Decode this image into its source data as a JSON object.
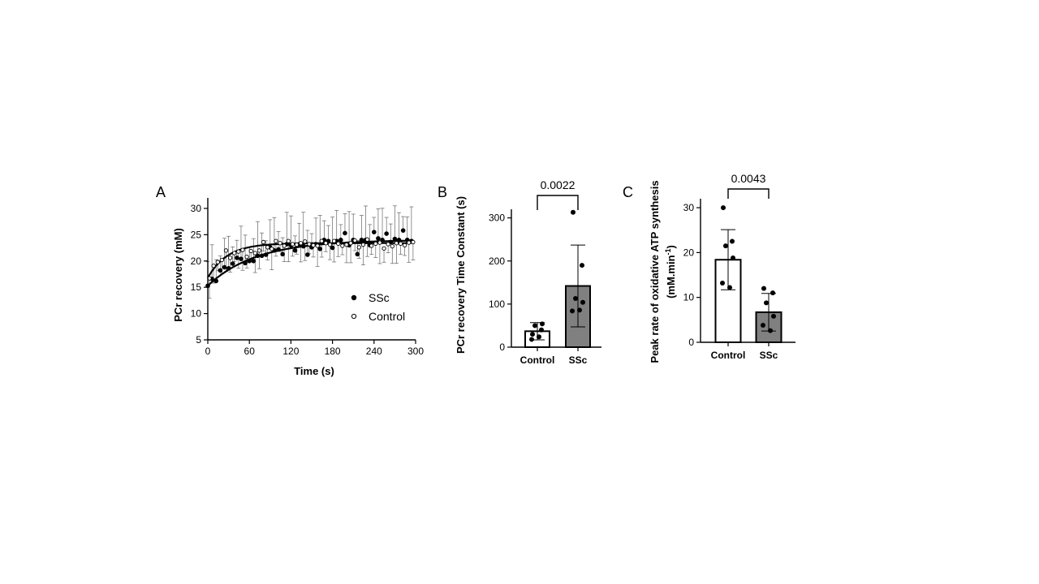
{
  "chart_data": [
    {
      "panel": "A",
      "type": "scatter",
      "xlabel": "Time (s)",
      "ylabel": "PCr recovery (mM)",
      "xlim": [
        0,
        300
      ],
      "ylim": [
        5,
        32
      ],
      "xticks": [
        0,
        60,
        120,
        180,
        240,
        300
      ],
      "yticks": [
        5,
        10,
        15,
        20,
        25,
        30
      ],
      "grid": false,
      "legend_position": "right",
      "series": [
        {
          "name": "SSc",
          "marker": "filled-circle",
          "color": "#000000",
          "x": [
            0,
            6,
            12,
            18,
            24,
            30,
            36,
            42,
            48,
            54,
            60,
            66,
            72,
            78,
            84,
            90,
            96,
            102,
            108,
            114,
            120,
            126,
            132,
            138,
            144,
            150,
            156,
            162,
            168,
            174,
            180,
            186,
            192,
            198,
            204,
            210,
            216,
            222,
            228,
            234,
            240,
            246,
            252,
            258,
            264,
            270,
            276,
            282,
            288,
            294
          ],
          "y": [
            15.3,
            16.6,
            16.2,
            18.2,
            18.8,
            18.6,
            19.5,
            20.6,
            20.4,
            19.6,
            20.0,
            20.0,
            21.0,
            21.0,
            21.2,
            22.6,
            22.0,
            22.2,
            21.3,
            23.2,
            23.0,
            22.0,
            23.2,
            22.8,
            21.2,
            22.6,
            23.2,
            22.3,
            24.0,
            23.8,
            22.5,
            23.8,
            24.0,
            25.3,
            23.0,
            24.0,
            21.3,
            24.0,
            24.0,
            23.0,
            25.5,
            24.3,
            24.0,
            25.2,
            23.6,
            24.2,
            24.0,
            25.8,
            24.0,
            23.8
          ],
          "error_bars": "SD",
          "fit": "mono-exponential"
        },
        {
          "name": "Control",
          "marker": "open-circle",
          "color": "#000000",
          "x": [
            0,
            6,
            12,
            18,
            24,
            30,
            36,
            42,
            48,
            54,
            60,
            66,
            72,
            78,
            84,
            90,
            96,
            102,
            108,
            114,
            120,
            126,
            132,
            138,
            144,
            150,
            156,
            162,
            168,
            174,
            180,
            186,
            192,
            198,
            204,
            210,
            216,
            222,
            228,
            234,
            240,
            246,
            252,
            258,
            264,
            270,
            276,
            282,
            288,
            294
          ],
          "y": [
            16.7,
            19.1,
            19.8,
            20.2,
            22.0,
            20.6,
            21.5,
            21.8,
            22.1,
            20.8,
            21.9,
            21.5,
            22.0,
            23.6,
            22.6,
            22.3,
            23.8,
            23.4,
            22.9,
            23.8,
            23.2,
            23.1,
            23.4,
            23.7,
            23.2,
            23.0,
            22.9,
            23.8,
            23.4,
            23.1,
            23.8,
            23.3,
            22.9,
            23.1,
            23.4,
            23.9,
            22.6,
            23.1,
            24.1,
            22.9,
            23.3,
            23.5,
            22.4,
            23.2,
            22.8,
            23.4,
            23.3,
            23.0,
            23.5,
            23.6
          ],
          "error_bars": "SD",
          "fit": "mono-exponential"
        }
      ]
    },
    {
      "panel": "B",
      "type": "bar",
      "ylabel": "PCr recovery Time Constant (s)",
      "categories": [
        "Control",
        "SSc"
      ],
      "ylim": [
        0,
        320
      ],
      "yticks": [
        0,
        100,
        200,
        300
      ],
      "bar_colors": [
        "#ffffff",
        "#808080"
      ],
      "series": [
        {
          "values": [
            37,
            142
          ],
          "sd": [
            20,
            95
          ],
          "points": [
            [
              30,
              40,
              50,
              54,
              18,
              24
            ],
            [
              313,
              190,
              113,
              104,
              84,
              86
            ]
          ]
        }
      ],
      "annotation": {
        "text": "0.0022",
        "between": [
          "Control",
          "SSc"
        ]
      }
    },
    {
      "panel": "C",
      "type": "bar",
      "ylabel": "Peak rate of oxidative ATP synthesis (mM.min-1)",
      "ylabel_text": "Peak rate of oxidative ATP synthesis",
      "ylabel_unit_prefix": "(mM.min",
      "ylabel_unit_exp": "-1",
      "ylabel_unit_suffix": ")",
      "categories": [
        "Control",
        "SSc"
      ],
      "ylim": [
        0,
        32
      ],
      "yticks": [
        0,
        10,
        20,
        30
      ],
      "bar_colors": [
        "#ffffff",
        "#808080"
      ],
      "series": [
        {
          "values": [
            18.4,
            6.7
          ],
          "sd": [
            6.7,
            4.2
          ],
          "points": [
            [
              30,
              22.5,
              21.5,
              18.8,
              13.2,
              12.2
            ],
            [
              12.0,
              11.0,
              8.8,
              5.8,
              3.8,
              2.6
            ]
          ]
        }
      ],
      "annotation": {
        "text": "0.0043",
        "between": [
          "Control",
          "SSc"
        ]
      }
    }
  ]
}
